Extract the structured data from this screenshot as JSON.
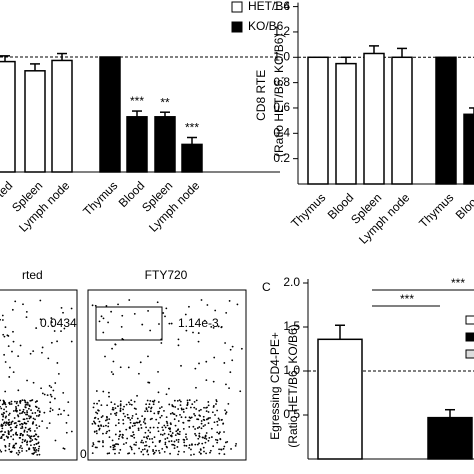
{
  "chart_data": [
    {
      "type": "bar",
      "categories": [
        "ted",
        "Spleen",
        "Lymph node",
        "Thymus",
        "Blood",
        "Spleen",
        "Lymph node"
      ],
      "series": [
        {
          "name": "HET/B6",
          "color": "#ffffff",
          "values": [
            0.96,
            0.88,
            0.97,
            null,
            null,
            null,
            null
          ],
          "errors": [
            0.05,
            0.06,
            0.06,
            null,
            null,
            null,
            null
          ]
        },
        {
          "name": "KO/B6",
          "color": "#000000",
          "values": [
            null,
            null,
            null,
            1.0,
            0.48,
            0.48,
            0.24
          ],
          "errors": [
            null,
            null,
            null,
            0,
            0.05,
            0.04,
            0.06
          ]
        }
      ],
      "annotations": [
        {
          "text": "***",
          "category": 4
        },
        {
          "text": "**",
          "category": 5
        },
        {
          "text": "***",
          "category": 6
        }
      ],
      "reference_line": 1.0,
      "ylim": [
        0,
        1.4
      ]
    },
    {
      "type": "bar",
      "y_label": [
        "CD8 RTE",
        "(Ratio HET/B6, KO/B6)"
      ],
      "categories": [
        "Thymus",
        "Blood",
        "Spleen",
        "Lymph node",
        "Thymus",
        "Blood"
      ],
      "series": [
        {
          "name": "HET/B6",
          "color": "#ffffff",
          "values": [
            1.0,
            0.95,
            1.03,
            1.0,
            null,
            null
          ],
          "errors": [
            0,
            0.05,
            0.06,
            0.07,
            null,
            null
          ]
        },
        {
          "name": "KO/B6",
          "color": "#000000",
          "values": [
            null,
            null,
            null,
            null,
            1.0,
            0.55
          ],
          "errors": [
            null,
            null,
            null,
            null,
            0,
            0.05
          ]
        }
      ],
      "reference_line": 1.0,
      "ylim": [
        0,
        1.4
      ],
      "yticks": [
        0.2,
        0.4,
        0.6,
        0.8,
        {
          "value": 1,
          "label": "1.0"
        },
        1.2,
        1.4
      ]
    },
    {
      "type": "bar",
      "panel_label": "C",
      "y_label": [
        "Egressing CD4-PE+",
        "(Ratio HET/B6, KO/B6)"
      ],
      "categories": [
        null,
        null
      ],
      "series": [
        {
          "color": "#ffffff",
          "values": [
            1.36,
            null
          ],
          "errors": [
            0.16,
            null
          ]
        },
        {
          "color": "#000000",
          "values": [
            null,
            0.47
          ],
          "errors": [
            null,
            0.09
          ]
        }
      ],
      "annotations": [
        {
          "text": "***"
        },
        {
          "text": "***"
        }
      ],
      "reference_line": 1.0,
      "ylim": [
        0,
        2
      ],
      "yticks": [
        0.5,
        {
          "value": 1,
          "label": "1.0"
        },
        1.5,
        {
          "value": 2,
          "label": "2.0"
        }
      ]
    }
  ],
  "flow": {
    "panels": [
      {
        "title": "rted",
        "gate": "0.0434"
      },
      {
        "title": "FTY720",
        "gate": "1.14e-3",
        "axis_label": "0"
      }
    ]
  }
}
